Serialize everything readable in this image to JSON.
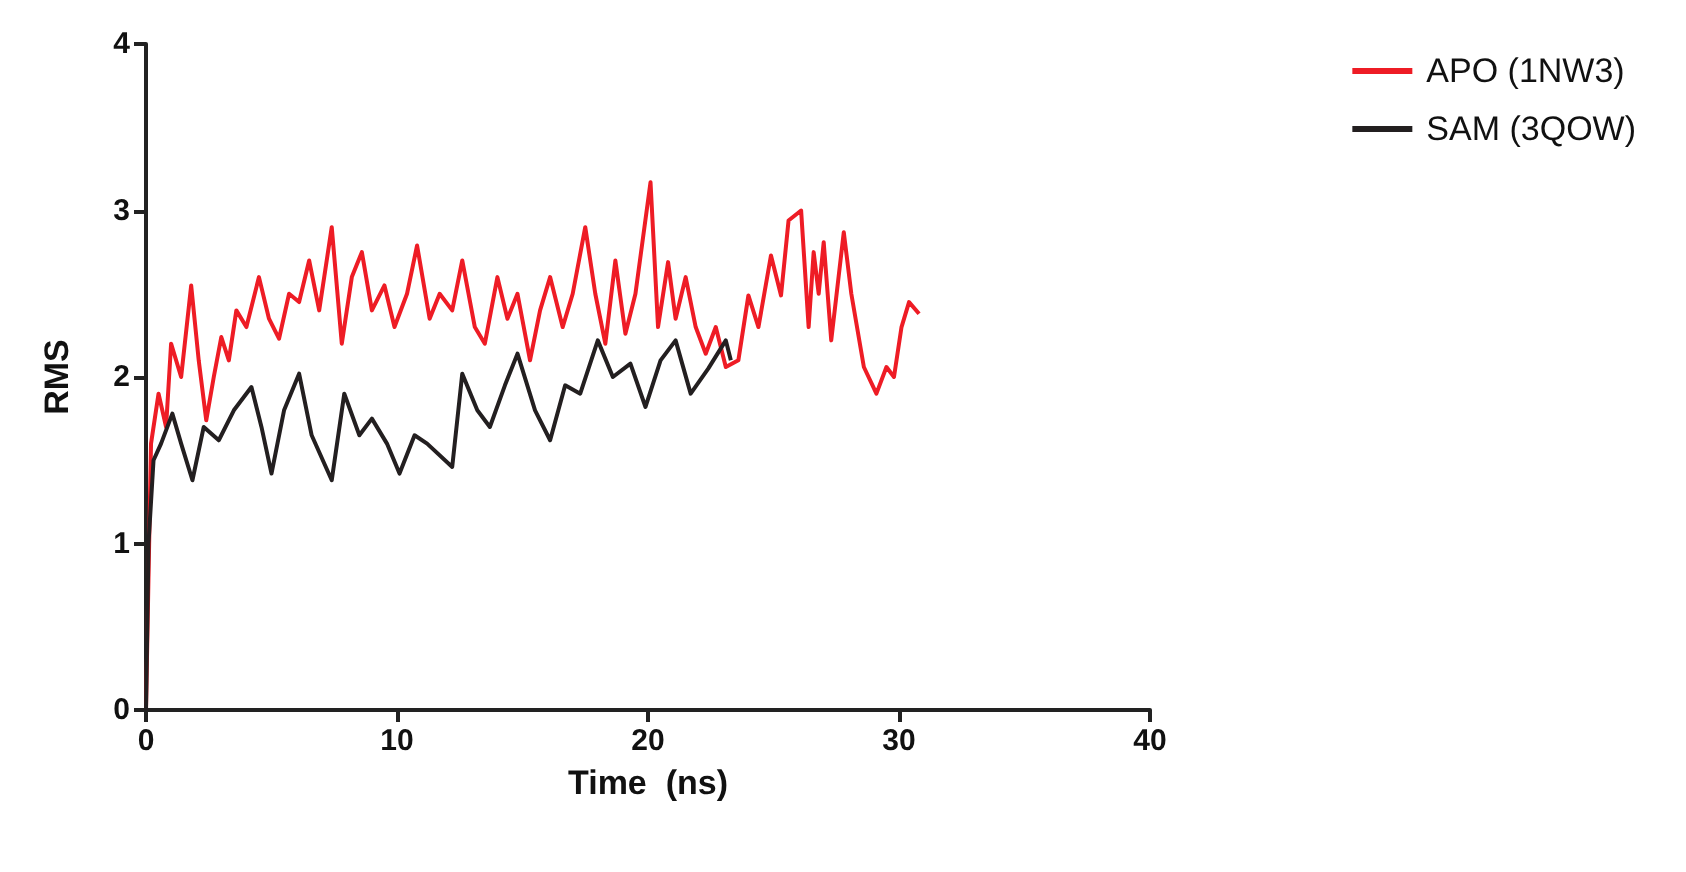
{
  "chart_data": {
    "type": "line",
    "xlabel": "Time  (ns)",
    "ylabel": "RMS",
    "xlim": [
      0,
      40
    ],
    "xticks": [
      0,
      10,
      20,
      30,
      40
    ],
    "ylim": [
      0,
      4
    ],
    "yticks": [
      0,
      1,
      2,
      3,
      4
    ],
    "grid": false,
    "legend": "top right",
    "marker": "none",
    "line_style": "solid",
    "series": [
      {
        "name": "APO (1NW3)",
        "color": "#ee1c25",
        "x": [
          0,
          0.2,
          0.5,
          0.8,
          1.0,
          1.4,
          1.8,
          2.1,
          2.4,
          2.7,
          3.0,
          3.3,
          3.6,
          4.0,
          4.5,
          4.9,
          5.3,
          5.7,
          6.1,
          6.5,
          6.9,
          7.4,
          7.8,
          8.2,
          8.6,
          9.0,
          9.5,
          9.9,
          10.4,
          10.8,
          11.3,
          11.7,
          12.2,
          12.6,
          13.1,
          13.5,
          14.0,
          14.4,
          14.8,
          15.3,
          15.7,
          16.1,
          16.6,
          17.0,
          17.5,
          17.9,
          18.3,
          18.7,
          19.1,
          19.5,
          20.1,
          20.4,
          20.8,
          21.1,
          21.5,
          21.9,
          22.3,
          22.7,
          23.1,
          23.6,
          24.0,
          24.4,
          24.9,
          25.3,
          25.6,
          26.1,
          26.4,
          26.6,
          26.8,
          27.0,
          27.3,
          27.8,
          28.1,
          28.6,
          29.1,
          29.5,
          29.8,
          30.1,
          30.4,
          30.8
        ],
        "values": [
          0,
          1.6,
          1.9,
          1.7,
          2.2,
          2.0,
          2.55,
          2.1,
          1.74,
          2.0,
          2.24,
          2.1,
          2.4,
          2.3,
          2.6,
          2.35,
          2.23,
          2.5,
          2.45,
          2.7,
          2.4,
          2.9,
          2.2,
          2.6,
          2.75,
          2.4,
          2.55,
          2.3,
          2.5,
          2.79,
          2.35,
          2.5,
          2.4,
          2.7,
          2.3,
          2.2,
          2.6,
          2.35,
          2.5,
          2.1,
          2.4,
          2.6,
          2.3,
          2.5,
          2.9,
          2.5,
          2.2,
          2.7,
          2.26,
          2.5,
          3.17,
          2.3,
          2.69,
          2.35,
          2.6,
          2.3,
          2.14,
          2.3,
          2.06,
          2.1,
          2.49,
          2.3,
          2.73,
          2.49,
          2.94,
          3.0,
          2.3,
          2.75,
          2.5,
          2.81,
          2.22,
          2.87,
          2.5,
          2.06,
          1.9,
          2.06,
          2.0,
          2.3,
          2.45,
          2.38
        ]
      },
      {
        "name": "SAM (3QOW)",
        "color": "#231f20",
        "x": [
          0,
          0.1,
          0.3,
          0.6,
          1.05,
          1.4,
          1.85,
          2.3,
          2.9,
          3.5,
          4.2,
          4.6,
          5.0,
          5.5,
          6.1,
          6.6,
          7.4,
          7.9,
          8.5,
          9.0,
          9.6,
          10.1,
          10.7,
          11.2,
          12.2,
          12.6,
          13.2,
          13.7,
          14.3,
          14.8,
          15.5,
          16.1,
          16.7,
          17.3,
          18.0,
          18.6,
          19.3,
          19.9,
          20.5,
          21.1,
          21.7,
          22.4,
          23.1,
          23.3
        ],
        "values": [
          0,
          1.0,
          1.5,
          1.6,
          1.78,
          1.6,
          1.38,
          1.7,
          1.62,
          1.8,
          1.94,
          1.7,
          1.42,
          1.8,
          2.02,
          1.65,
          1.38,
          1.9,
          1.65,
          1.75,
          1.6,
          1.42,
          1.65,
          1.6,
          1.46,
          2.02,
          1.8,
          1.7,
          1.95,
          2.14,
          1.8,
          1.62,
          1.95,
          1.9,
          2.22,
          2.0,
          2.08,
          1.82,
          2.1,
          2.22,
          1.9,
          2.05,
          2.22,
          2.1
        ]
      }
    ]
  }
}
